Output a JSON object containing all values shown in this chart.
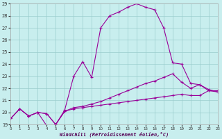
{
  "xlabel": "Windchill (Refroidissement éolien,°C)",
  "xlim": [
    0,
    23
  ],
  "ylim": [
    19,
    29
  ],
  "xticks": [
    0,
    1,
    2,
    3,
    4,
    5,
    6,
    7,
    8,
    9,
    10,
    11,
    12,
    13,
    14,
    15,
    16,
    17,
    18,
    19,
    20,
    21,
    22,
    23
  ],
  "yticks": [
    19,
    20,
    21,
    22,
    23,
    24,
    25,
    26,
    27,
    28,
    29
  ],
  "bg_color": "#c8eeee",
  "line_color": "#990099",
  "grid_color": "#99cccc",
  "line1_x": [
    0,
    1,
    2,
    3,
    4,
    5,
    6,
    7,
    8,
    9,
    10,
    11,
    12,
    13,
    14,
    15,
    16,
    17,
    18,
    19,
    20,
    21,
    22,
    23
  ],
  "line1_y": [
    19.5,
    20.3,
    19.7,
    20.0,
    19.9,
    19.0,
    20.1,
    20.3,
    20.4,
    20.5,
    20.6,
    20.7,
    20.8,
    20.9,
    21.0,
    21.1,
    21.2,
    21.3,
    21.4,
    21.5,
    21.4,
    21.4,
    21.8,
    21.8
  ],
  "line2_x": [
    0,
    1,
    2,
    3,
    4,
    5,
    6,
    7,
    8,
    9,
    10,
    11,
    12,
    13,
    14,
    15,
    16,
    17,
    18,
    19,
    20,
    21,
    22,
    23
  ],
  "line2_y": [
    19.5,
    20.3,
    19.7,
    20.0,
    19.9,
    19.0,
    20.1,
    20.4,
    20.5,
    20.7,
    20.9,
    21.2,
    21.5,
    21.8,
    22.1,
    22.4,
    22.6,
    22.9,
    23.2,
    22.5,
    22.0,
    22.3,
    21.8,
    21.7
  ],
  "line3_x": [
    0,
    1,
    2,
    3,
    4,
    5,
    6,
    7,
    8,
    9,
    10,
    11,
    12,
    13,
    14,
    15,
    16,
    17,
    18,
    19,
    20,
    21,
    22,
    23
  ],
  "line3_y": [
    19.5,
    20.3,
    19.7,
    20.0,
    18.9,
    19.0,
    20.2,
    23.0,
    24.2,
    22.9,
    27.0,
    28.0,
    28.3,
    28.7,
    29.0,
    28.7,
    28.5,
    27.0,
    24.1,
    24.0,
    22.4,
    22.3,
    21.9,
    21.7
  ]
}
